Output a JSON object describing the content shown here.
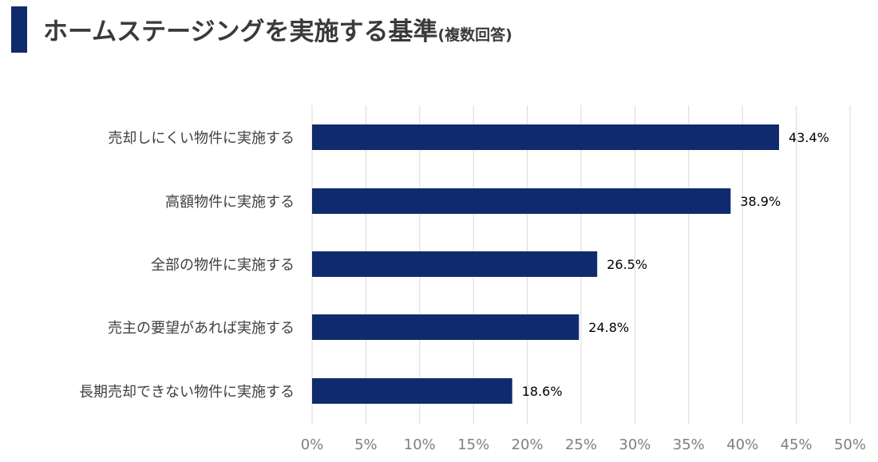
{
  "title": {
    "main": "ホームステージングを実施する基準",
    "sub": "(複数回答)"
  },
  "colors": {
    "accent": "#102a6e",
    "bar": "#102a6e",
    "grid": "#d9d9d9",
    "label_text": "#404040",
    "tick_text": "#7f7f7f",
    "value_text": "#000000"
  },
  "chart_data": {
    "type": "bar",
    "orientation": "horizontal",
    "categories": [
      "売却しにくい物件に実施する",
      "高額物件に実施する",
      "全部の物件に実施する",
      "売主の要望があれば実施する",
      "長期売却できない物件に実施する"
    ],
    "values": [
      43.4,
      38.9,
      26.5,
      24.8,
      18.6
    ],
    "value_labels": [
      "43.4%",
      "38.9%",
      "26.5%",
      "24.8%",
      "18.6%"
    ],
    "xlim": [
      0,
      50
    ],
    "x_ticks": [
      0,
      5,
      10,
      15,
      20,
      25,
      30,
      35,
      40,
      45,
      50
    ],
    "x_tick_labels": [
      "0%",
      "5%",
      "10%",
      "15%",
      "20%",
      "25%",
      "30%",
      "35%",
      "40%",
      "45%",
      "50%"
    ],
    "grid": "vertical",
    "legend": "none"
  }
}
